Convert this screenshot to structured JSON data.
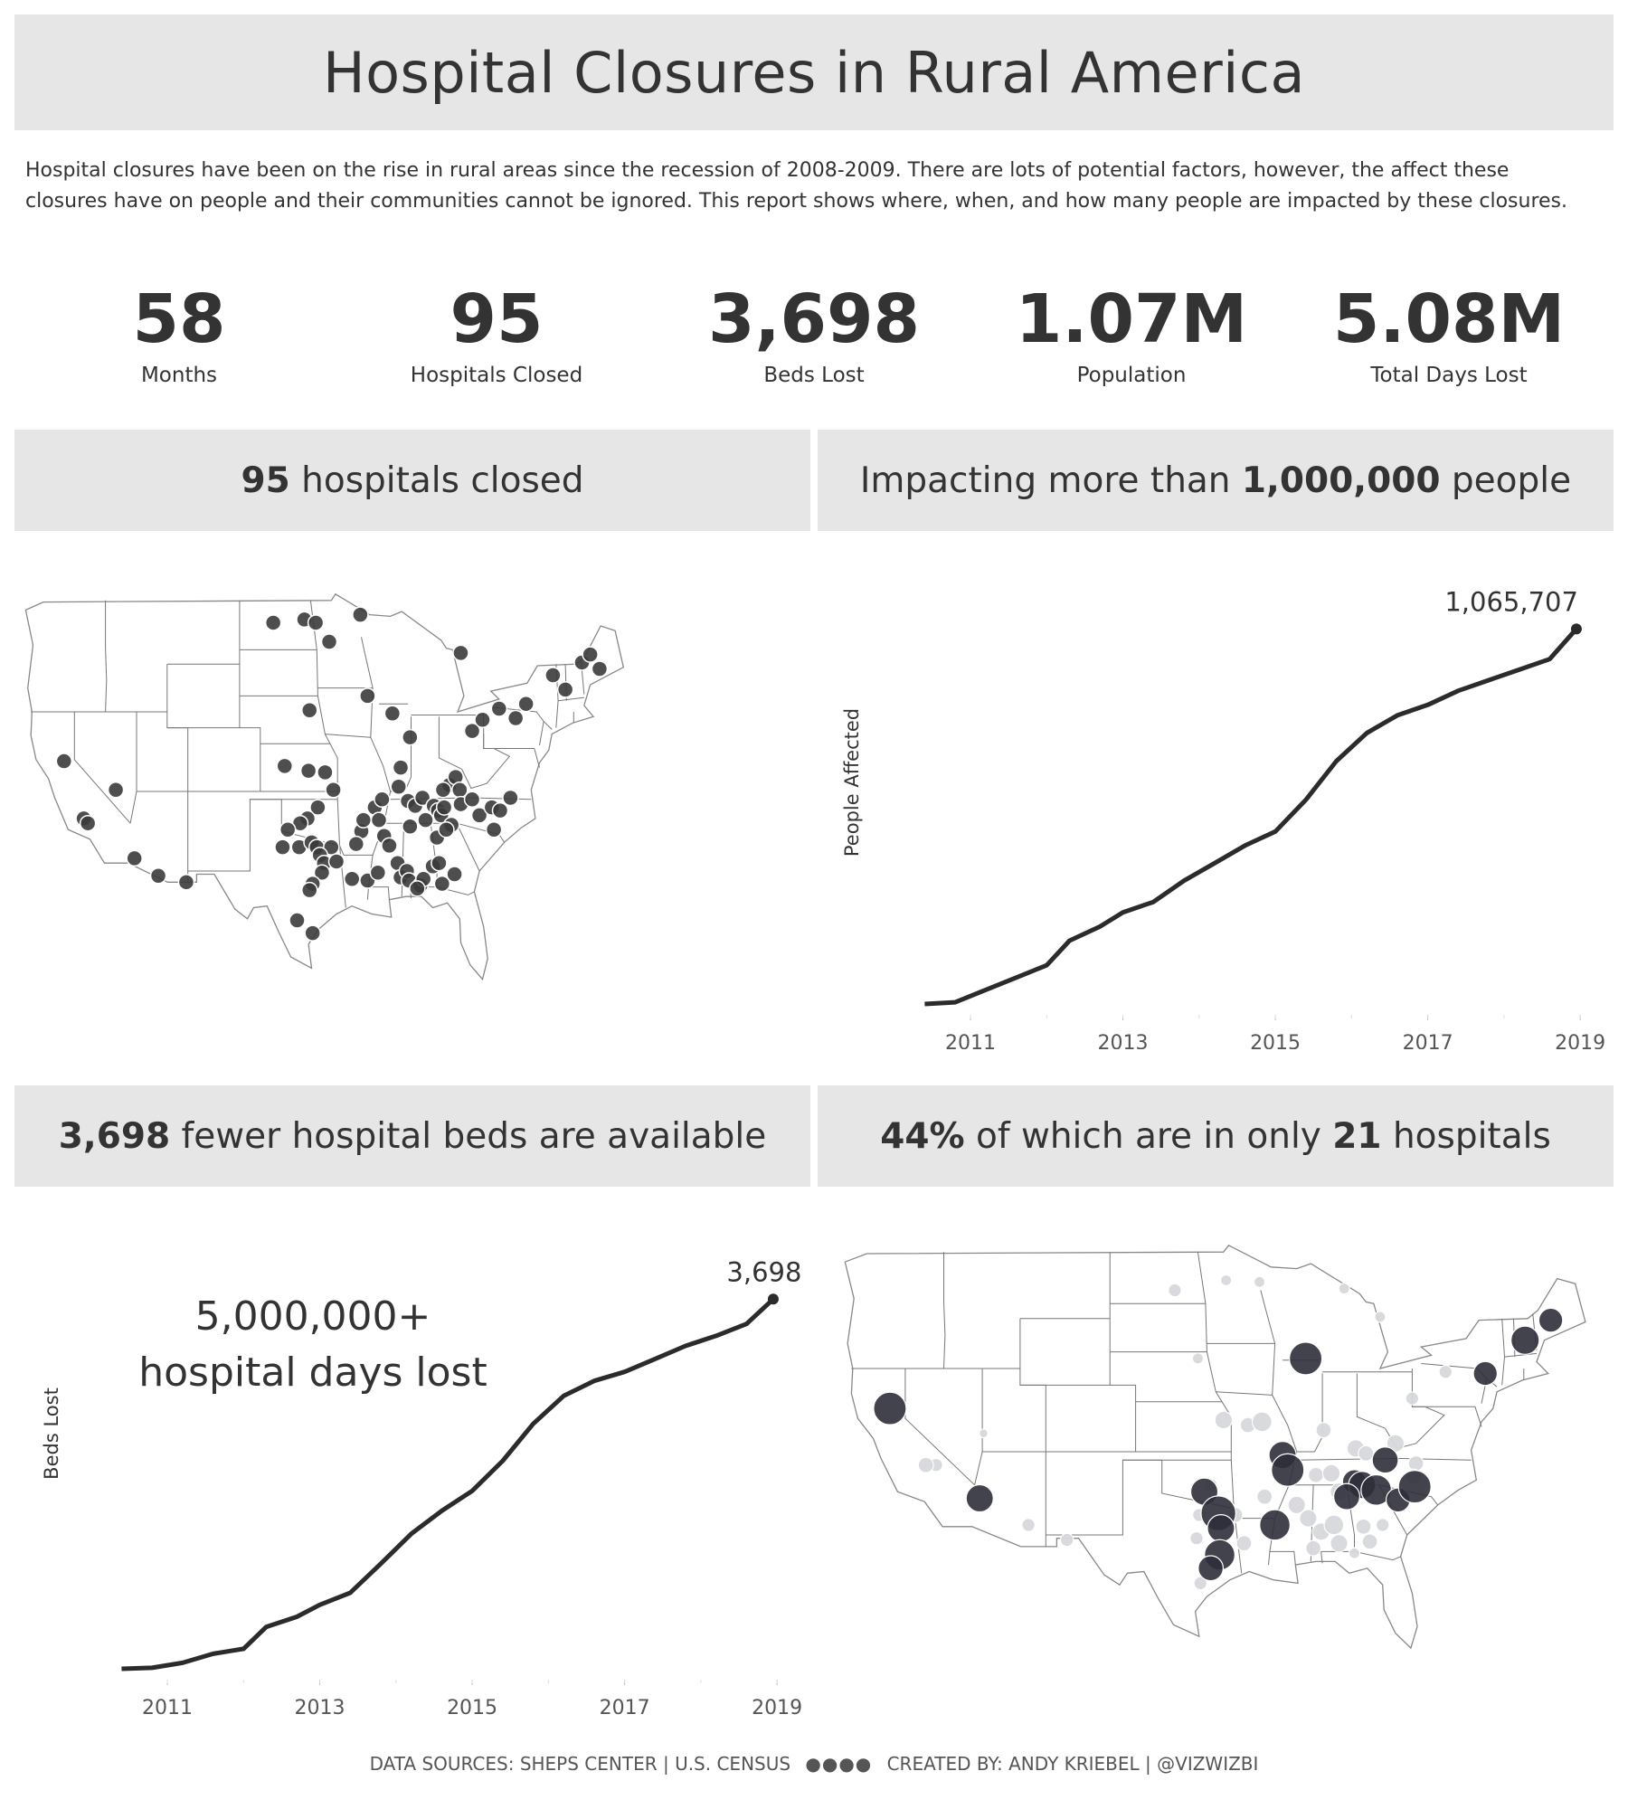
{
  "header": {
    "title": "Hospital Closures in Rural America",
    "intro_line1": "Hospital closures have been on the rise in rural areas since the recession of 2008-2009. There are lots of potential factors, however, the affect these",
    "intro_line2": "closures have on people and their communities cannot be ignored. This report shows where, when, and how many people are impacted by these closures."
  },
  "kpis": [
    {
      "value": "58",
      "label": "Months"
    },
    {
      "value": "95",
      "label": "Hospitals Closed"
    },
    {
      "value": "3,698",
      "label": "Beds Lost"
    },
    {
      "value": "1.07M",
      "label": "Population"
    },
    {
      "value": "5.08M",
      "label": "Total Days Lost"
    }
  ],
  "sections": {
    "map_closures": {
      "bold": "95",
      "text": " hospitals closed"
    },
    "people": {
      "text": "Impacting more than ",
      "bold": "1,000,000",
      "text2": " people"
    },
    "beds": {
      "bold": "3,698",
      "text": " fewer hospital beds are available"
    },
    "concentration": {
      "bold1": "44%",
      "text1": " of which are in only ",
      "bold2": "21",
      "text2": " hospitals"
    }
  },
  "beds_annotation": {
    "line1": "5,000,000+",
    "line2": "hospital days lost"
  },
  "footer": {
    "sources": "DATA SOURCES: SHEPS CENTER | U.S. CENSUS",
    "dots": "●●●●",
    "credit": "CREATED BY: ANDY KRIEBEL | @VIZWIZBI"
  },
  "chart_data": [
    {
      "type": "line",
      "title": "Impacting more than 1,000,000 people",
      "xlabel": "",
      "ylabel": "People Affected",
      "x_ticks": [
        "2011",
        "2013",
        "2015",
        "2017",
        "2019"
      ],
      "xlim": [
        2010.3,
        2019.2
      ],
      "ylim": [
        0,
        1100000
      ],
      "end_label": "1,065,707",
      "x": [
        2010.4,
        2010.8,
        2011.2,
        2011.6,
        2012.0,
        2012.3,
        2012.7,
        2013.0,
        2013.4,
        2013.8,
        2014.2,
        2014.6,
        2015.0,
        2015.4,
        2015.8,
        2016.2,
        2016.6,
        2017.0,
        2017.4,
        2017.8,
        2018.2,
        2018.6,
        2018.95
      ],
      "y": [
        0,
        5000,
        40000,
        75000,
        110000,
        180000,
        220000,
        260000,
        290000,
        350000,
        400000,
        450000,
        490000,
        580000,
        690000,
        770000,
        820000,
        850000,
        890000,
        920000,
        950000,
        980000,
        1065707
      ]
    },
    {
      "type": "line",
      "title": "3,698 fewer hospital beds are available",
      "xlabel": "",
      "ylabel": "Beds Lost",
      "x_ticks": [
        "2011",
        "2013",
        "2015",
        "2017",
        "2019"
      ],
      "xlim": [
        2010.3,
        2019.2
      ],
      "ylim": [
        0,
        3800
      ],
      "end_label": "3,698",
      "x": [
        2010.4,
        2010.8,
        2011.2,
        2011.6,
        2012.0,
        2012.3,
        2012.7,
        2013.0,
        2013.4,
        2013.8,
        2014.2,
        2014.6,
        2015.0,
        2015.4,
        2015.8,
        2016.2,
        2016.6,
        2017.0,
        2017.4,
        2017.8,
        2018.2,
        2018.6,
        2018.95
      ],
      "y": [
        0,
        10,
        60,
        150,
        200,
        420,
        520,
        640,
        760,
        1050,
        1350,
        1580,
        1780,
        2080,
        2450,
        2730,
        2880,
        2970,
        3100,
        3230,
        3330,
        3450,
        3698
      ]
    },
    {
      "type": "scatter",
      "title": "95 hospitals closed",
      "description": "US map with one dot per closed hospital (map units: longitude, latitude)",
      "points": [
        [
          -121.0,
          38.9
        ],
        [
          -119.1,
          35.3
        ],
        [
          -118.7,
          35.0
        ],
        [
          -116.0,
          37.1
        ],
        [
          -114.2,
          32.8
        ],
        [
          -111.9,
          31.7
        ],
        [
          -109.2,
          31.3
        ],
        [
          -100.8,
          47.6
        ],
        [
          -97.8,
          47.8
        ],
        [
          -96.7,
          47.6
        ],
        [
          -95.4,
          46.4
        ],
        [
          -97.3,
          42.1
        ],
        [
          -92.4,
          48.1
        ],
        [
          -99.7,
          38.6
        ],
        [
          -91.7,
          43.0
        ],
        [
          -97.4,
          38.3
        ],
        [
          -95.8,
          38.2
        ],
        [
          -95.0,
          37.1
        ],
        [
          -96.5,
          36.0
        ],
        [
          -97.5,
          35.3
        ],
        [
          -98.2,
          35.0
        ],
        [
          -99.4,
          34.6
        ],
        [
          -99.9,
          33.5
        ],
        [
          -98.3,
          33.5
        ],
        [
          -97.1,
          33.8
        ],
        [
          -96.6,
          33.5
        ],
        [
          -95.2,
          33.5
        ],
        [
          -96.3,
          33.0
        ],
        [
          -95.9,
          32.5
        ],
        [
          -94.7,
          32.6
        ],
        [
          -96.1,
          31.9
        ],
        [
          -97.0,
          31.2
        ],
        [
          -97.3,
          30.8
        ],
        [
          -98.5,
          28.9
        ],
        [
          -97.0,
          28.1
        ],
        [
          -92.3,
          34.5
        ],
        [
          -92.8,
          33.7
        ],
        [
          -91.0,
          36.0
        ],
        [
          -90.6,
          35.2
        ],
        [
          -90.1,
          34.2
        ],
        [
          -89.6,
          33.6
        ],
        [
          -88.8,
          32.5
        ],
        [
          -88.5,
          31.6
        ],
        [
          -87.9,
          32.0
        ],
        [
          -87.7,
          31.4
        ],
        [
          -86.6,
          31.1
        ],
        [
          -86.3,
          31.5
        ],
        [
          -85.4,
          32.3
        ],
        [
          -84.8,
          32.5
        ],
        [
          -84.5,
          31.2
        ],
        [
          -83.3,
          31.8
        ],
        [
          -87.6,
          40.4
        ],
        [
          -88.5,
          38.5
        ],
        [
          -87.8,
          36.4
        ],
        [
          -87.1,
          36.1
        ],
        [
          -86.4,
          36.6
        ],
        [
          -85.3,
          36.1
        ],
        [
          -84.9,
          35.8
        ],
        [
          -84.6,
          35.5
        ],
        [
          -84.3,
          36.0
        ],
        [
          -83.8,
          37.4
        ],
        [
          -83.2,
          37.9
        ],
        [
          -82.8,
          37.1
        ],
        [
          -82.7,
          36.2
        ],
        [
          -81.6,
          36.5
        ],
        [
          -80.9,
          35.5
        ],
        [
          -79.7,
          36.0
        ],
        [
          -78.9,
          35.8
        ],
        [
          -79.5,
          34.6
        ],
        [
          -77.9,
          36.6
        ],
        [
          -81.6,
          40.8
        ],
        [
          -80.6,
          41.5
        ],
        [
          -79.0,
          42.2
        ],
        [
          -77.4,
          41.6
        ],
        [
          -76.4,
          42.5
        ],
        [
          -73.8,
          44.3
        ],
        [
          -72.6,
          43.4
        ],
        [
          -71.0,
          45.1
        ],
        [
          -70.2,
          45.6
        ],
        [
          -69.3,
          44.7
        ],
        [
          -82.7,
          45.7
        ],
        [
          -84.4,
          37.1
        ],
        [
          -89.3,
          41.9
        ],
        [
          -88.7,
          37.3
        ],
        [
          -91.7,
          31.4
        ],
        [
          -90.7,
          31.9
        ],
        [
          -93.2,
          31.5
        ],
        [
          -86.9,
          30.9
        ],
        [
          -85.0,
          34.1
        ],
        [
          -83.6,
          34.9
        ],
        [
          -92.1,
          35.2
        ],
        [
          -90.3,
          36.5
        ],
        [
          -87.6,
          34.8
        ],
        [
          -86.1,
          35.2
        ],
        [
          -84.1,
          34.6
        ]
      ]
    },
    {
      "type": "scatter",
      "title": "44% of which are in only 21 hospitals",
      "description": "US map bubbles sized by beds; dark = top 21 hospitals, light = others",
      "points": [
        {
          "lon": -121.2,
          "lat": 39.6,
          "size": 3,
          "top": true
        },
        {
          "lon": -114.2,
          "lat": 34.2,
          "size": 2.5,
          "top": true
        },
        {
          "lon": -88.8,
          "lat": 42.6,
          "size": 3,
          "top": true
        },
        {
          "lon": -90.6,
          "lat": 36.8,
          "size": 2.5,
          "top": true
        },
        {
          "lon": -90.2,
          "lat": 35.9,
          "size": 3,
          "top": true
        },
        {
          "lon": -96.7,
          "lat": 34.6,
          "size": 2.5,
          "top": true
        },
        {
          "lon": -95.6,
          "lat": 33.3,
          "size": 3.2,
          "top": true
        },
        {
          "lon": -95.4,
          "lat": 32.4,
          "size": 2.5,
          "top": true
        },
        {
          "lon": -95.5,
          "lat": 30.8,
          "size": 2.8,
          "top": true
        },
        {
          "lon": -96.2,
          "lat": 30.0,
          "size": 2.3,
          "top": true
        },
        {
          "lon": -91.2,
          "lat": 32.6,
          "size": 2.8,
          "top": true
        },
        {
          "lon": -85.0,
          "lat": 35.2,
          "size": 2.2,
          "top": true
        },
        {
          "lon": -84.4,
          "lat": 35.0,
          "size": 2.5,
          "top": true
        },
        {
          "lon": -83.3,
          "lat": 34.7,
          "size": 2.8,
          "top": true
        },
        {
          "lon": -81.6,
          "lat": 34.1,
          "size": 2.2,
          "top": true
        },
        {
          "lon": -80.3,
          "lat": 34.9,
          "size": 3,
          "top": true
        },
        {
          "lon": -82.6,
          "lat": 36.5,
          "size": 2.4,
          "top": true
        },
        {
          "lon": -74.8,
          "lat": 41.7,
          "size": 2.2,
          "top": true
        },
        {
          "lon": -71.7,
          "lat": 43.7,
          "size": 2.6,
          "top": true
        },
        {
          "lon": -69.7,
          "lat": 44.9,
          "size": 2.2,
          "top": true
        },
        {
          "lon": -85.6,
          "lat": 34.3,
          "size": 2.4,
          "top": true
        },
        {
          "lon": -99.0,
          "lat": 46.7,
          "size": 1.2,
          "top": false
        },
        {
          "lon": -95.0,
          "lat": 47.3,
          "size": 1,
          "top": false
        },
        {
          "lon": -92.4,
          "lat": 47.2,
          "size": 1,
          "top": false
        },
        {
          "lon": -97.2,
          "lat": 42.6,
          "size": 1,
          "top": false
        },
        {
          "lon": -95.2,
          "lat": 38.9,
          "size": 1.6,
          "top": false
        },
        {
          "lon": -93.3,
          "lat": 38.6,
          "size": 1.4,
          "top": false
        },
        {
          "lon": -92.2,
          "lat": 38.8,
          "size": 1.8,
          "top": false
        },
        {
          "lon": -117.6,
          "lat": 36.2,
          "size": 1.2,
          "top": false
        },
        {
          "lon": -118.4,
          "lat": 36.2,
          "size": 1.4,
          "top": false
        },
        {
          "lon": -113.9,
          "lat": 38.1,
          "size": 0.8,
          "top": false
        },
        {
          "lon": -110.4,
          "lat": 32.6,
          "size": 1.2,
          "top": false
        },
        {
          "lon": -107.4,
          "lat": 31.7,
          "size": 1.2,
          "top": false
        },
        {
          "lon": -96.2,
          "lat": 35.0,
          "size": 1.2,
          "top": false
        },
        {
          "lon": -97.1,
          "lat": 33.2,
          "size": 1.2,
          "top": false
        },
        {
          "lon": -94.3,
          "lat": 33.2,
          "size": 1.4,
          "top": false
        },
        {
          "lon": -93.6,
          "lat": 31.5,
          "size": 1.4,
          "top": false
        },
        {
          "lon": -97.3,
          "lat": 31.8,
          "size": 1.2,
          "top": false
        },
        {
          "lon": -97.0,
          "lat": 29.1,
          "size": 1.2,
          "top": false
        },
        {
          "lon": -92.0,
          "lat": 34.3,
          "size": 1.4,
          "top": false
        },
        {
          "lon": -89.5,
          "lat": 33.8,
          "size": 1.6,
          "top": false
        },
        {
          "lon": -88.6,
          "lat": 33.0,
          "size": 1.6,
          "top": false
        },
        {
          "lon": -87.6,
          "lat": 32.2,
          "size": 1.6,
          "top": false
        },
        {
          "lon": -86.6,
          "lat": 32.6,
          "size": 1.8,
          "top": false
        },
        {
          "lon": -86.2,
          "lat": 31.5,
          "size": 1.6,
          "top": false
        },
        {
          "lon": -84.3,
          "lat": 32.5,
          "size": 1.4,
          "top": false
        },
        {
          "lon": -83.8,
          "lat": 31.6,
          "size": 1.4,
          "top": false
        },
        {
          "lon": -82.8,
          "lat": 32.6,
          "size": 1.2,
          "top": false
        },
        {
          "lon": -87.4,
          "lat": 38.3,
          "size": 1.4,
          "top": false
        },
        {
          "lon": -84.9,
          "lat": 37.2,
          "size": 1.6,
          "top": false
        },
        {
          "lon": -84.1,
          "lat": 36.9,
          "size": 1.4,
          "top": false
        },
        {
          "lon": -81.8,
          "lat": 37.5,
          "size": 1.6,
          "top": false
        },
        {
          "lon": -80.2,
          "lat": 36.3,
          "size": 1.4,
          "top": false
        },
        {
          "lon": -80.5,
          "lat": 40.2,
          "size": 1.2,
          "top": false
        },
        {
          "lon": -77.9,
          "lat": 41.8,
          "size": 1.2,
          "top": false
        },
        {
          "lon": -88.0,
          "lat": 35.6,
          "size": 1.4,
          "top": false
        },
        {
          "lon": -86.8,
          "lat": 35.7,
          "size": 1.6,
          "top": false
        },
        {
          "lon": -86.2,
          "lat": 34.6,
          "size": 1.6,
          "top": false
        },
        {
          "lon": -88.2,
          "lat": 31.2,
          "size": 1.4,
          "top": false
        },
        {
          "lon": -85.0,
          "lat": 30.9,
          "size": 1,
          "top": false
        },
        {
          "lon": -85.8,
          "lat": 46.8,
          "size": 1,
          "top": false
        },
        {
          "lon": -83.0,
          "lat": 45.1,
          "size": 1,
          "top": false
        },
        {
          "lon": -80.4,
          "lat": 35.5,
          "size": 1.4,
          "top": false
        }
      ]
    }
  ]
}
